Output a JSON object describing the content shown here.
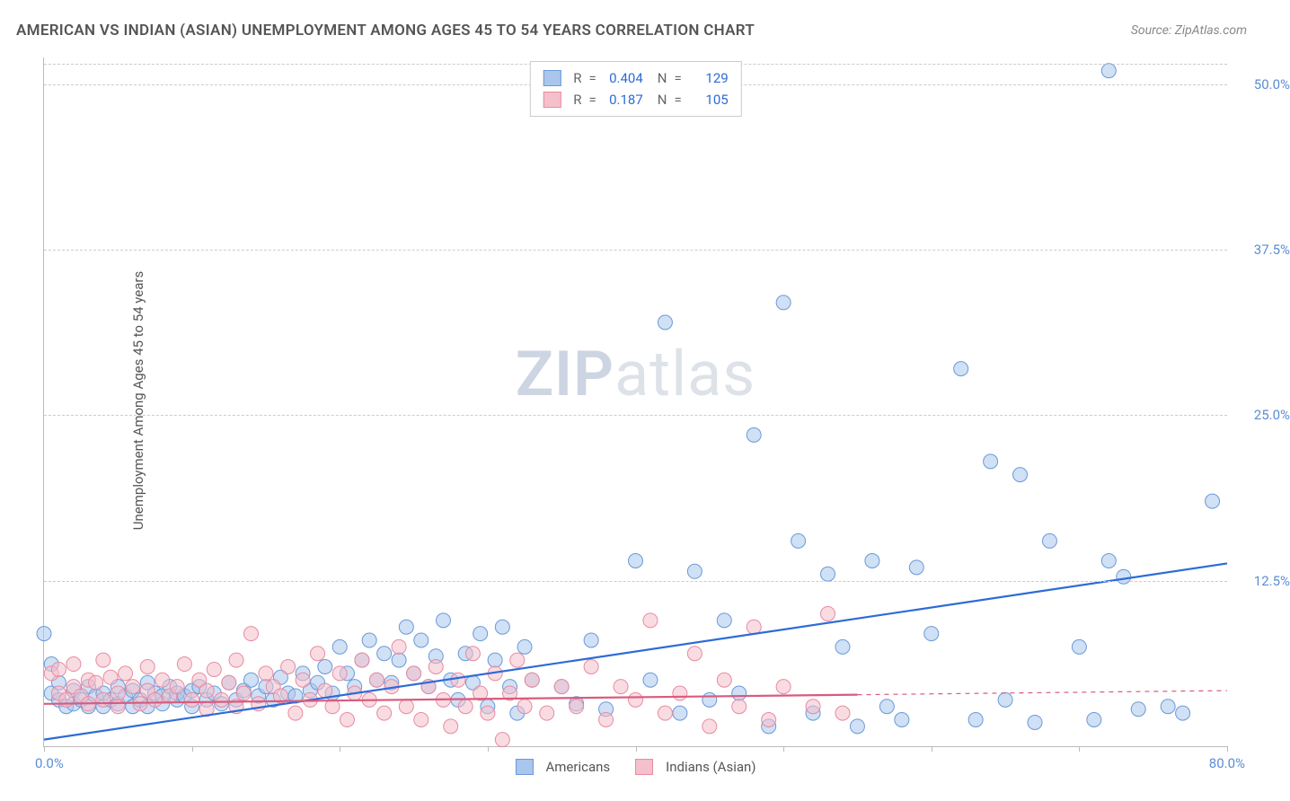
{
  "title": "AMERICAN VS INDIAN (ASIAN) UNEMPLOYMENT AMONG AGES 45 TO 54 YEARS CORRELATION CHART",
  "source": "Source: ZipAtlas.com",
  "y_axis_label": "Unemployment Among Ages 45 to 54 years",
  "watermark_bold": "ZIP",
  "watermark_rest": "atlas",
  "chart": {
    "type": "scatter",
    "background_color": "#ffffff",
    "grid_color": "#cccccc",
    "axis_color": "#bbbbbb",
    "tick_label_color": "#5b8dd6",
    "xlim": [
      0,
      80
    ],
    "ylim": [
      0,
      52
    ],
    "x_ticks": [
      0,
      10,
      20,
      30,
      40,
      50,
      60,
      70,
      80
    ],
    "x_tick_labels_shown": {
      "0": "0.0%",
      "80": "80.0%"
    },
    "y_ticks": [
      12.5,
      25.0,
      37.5,
      50.0
    ],
    "y_tick_labels": [
      "12.5%",
      "25.0%",
      "37.5%",
      "50.0%"
    ],
    "marker_radius": 8,
    "marker_opacity": 0.55,
    "line_width": 2.2,
    "series": [
      {
        "name": "Americans",
        "color_fill": "#a9c6ec",
        "color_stroke": "#6a9ad8",
        "line_color": "#2e6bd6",
        "r_value": "0.404",
        "n_value": "129",
        "regression": {
          "x1": 0,
          "y1": 0.5,
          "x2": 80,
          "y2": 13.8,
          "dashed_from_x": null
        },
        "points": [
          [
            0,
            8.5
          ],
          [
            0.5,
            6.2
          ],
          [
            0.5,
            4.0
          ],
          [
            1,
            3.5
          ],
          [
            1,
            4.8
          ],
          [
            1.5,
            3.0
          ],
          [
            2,
            3.2
          ],
          [
            2,
            4.2
          ],
          [
            2.5,
            3.5
          ],
          [
            3,
            3.0
          ],
          [
            3,
            4.5
          ],
          [
            3.5,
            3.8
          ],
          [
            4,
            3.0
          ],
          [
            4,
            4.0
          ],
          [
            4.5,
            3.5
          ],
          [
            5,
            3.2
          ],
          [
            5,
            4.5
          ],
          [
            5.5,
            3.8
          ],
          [
            6,
            3.0
          ],
          [
            6,
            4.2
          ],
          [
            6.5,
            3.5
          ],
          [
            7,
            3.0
          ],
          [
            7,
            4.8
          ],
          [
            7.5,
            4.0
          ],
          [
            8,
            3.2
          ],
          [
            8,
            3.8
          ],
          [
            8.5,
            4.5
          ],
          [
            9,
            3.5
          ],
          [
            9,
            4.0
          ],
          [
            9.5,
            3.8
          ],
          [
            10,
            4.2
          ],
          [
            10,
            3.0
          ],
          [
            10.5,
            4.5
          ],
          [
            11,
            3.5
          ],
          [
            11.5,
            4.0
          ],
          [
            12,
            3.2
          ],
          [
            12.5,
            4.8
          ],
          [
            13,
            3.5
          ],
          [
            13.5,
            4.2
          ],
          [
            14,
            5.0
          ],
          [
            14.5,
            3.8
          ],
          [
            15,
            4.5
          ],
          [
            15.5,
            3.5
          ],
          [
            16,
            5.2
          ],
          [
            16.5,
            4.0
          ],
          [
            17,
            3.8
          ],
          [
            17.5,
            5.5
          ],
          [
            18,
            4.2
          ],
          [
            18.5,
            4.8
          ],
          [
            19,
            6.0
          ],
          [
            19.5,
            4.0
          ],
          [
            20,
            7.5
          ],
          [
            20.5,
            5.5
          ],
          [
            21,
            4.5
          ],
          [
            21.5,
            6.5
          ],
          [
            22,
            8.0
          ],
          [
            22.5,
            5.0
          ],
          [
            23,
            7.0
          ],
          [
            23.5,
            4.8
          ],
          [
            24,
            6.5
          ],
          [
            24.5,
            9.0
          ],
          [
            25,
            5.5
          ],
          [
            25.5,
            8.0
          ],
          [
            26,
            4.5
          ],
          [
            26.5,
            6.8
          ],
          [
            27,
            9.5
          ],
          [
            27.5,
            5.0
          ],
          [
            28,
            3.5
          ],
          [
            28.5,
            7.0
          ],
          [
            29,
            4.8
          ],
          [
            29.5,
            8.5
          ],
          [
            30,
            3.0
          ],
          [
            30.5,
            6.5
          ],
          [
            31,
            9.0
          ],
          [
            31.5,
            4.5
          ],
          [
            32,
            2.5
          ],
          [
            32.5,
            7.5
          ],
          [
            33,
            5.0
          ],
          [
            35,
            4.5
          ],
          [
            36,
            3.2
          ],
          [
            37,
            8.0
          ],
          [
            38,
            2.8
          ],
          [
            40,
            14.0
          ],
          [
            41,
            5.0
          ],
          [
            42,
            32.0
          ],
          [
            43,
            2.5
          ],
          [
            44,
            13.2
          ],
          [
            45,
            3.5
          ],
          [
            46,
            9.5
          ],
          [
            47,
            4.0
          ],
          [
            48,
            23.5
          ],
          [
            49,
            1.5
          ],
          [
            50,
            33.5
          ],
          [
            51,
            15.5
          ],
          [
            52,
            2.5
          ],
          [
            53,
            13.0
          ],
          [
            54,
            7.5
          ],
          [
            55,
            1.5
          ],
          [
            56,
            14.0
          ],
          [
            57,
            3.0
          ],
          [
            58,
            2.0
          ],
          [
            59,
            13.5
          ],
          [
            60,
            8.5
          ],
          [
            62,
            28.5
          ],
          [
            63,
            2.0
          ],
          [
            64,
            21.5
          ],
          [
            65,
            3.5
          ],
          [
            66,
            20.5
          ],
          [
            67,
            1.8
          ],
          [
            68,
            15.5
          ],
          [
            70,
            7.5
          ],
          [
            71,
            2.0
          ],
          [
            72,
            51.0
          ],
          [
            73,
            12.8
          ],
          [
            74,
            2.8
          ],
          [
            76,
            3.0
          ],
          [
            77,
            2.5
          ],
          [
            79,
            18.5
          ],
          [
            72,
            14.0
          ]
        ]
      },
      {
        "name": "Indians (Asian)",
        "color_fill": "#f4c0cb",
        "color_stroke": "#e88ba1",
        "line_color": "#d95b7e",
        "r_value": "0.187",
        "n_value": "105",
        "regression": {
          "x1": 0,
          "y1": 3.2,
          "x2": 80,
          "y2": 4.2,
          "dashed_from_x": 55
        },
        "points": [
          [
            0.5,
            5.5
          ],
          [
            1,
            4.0
          ],
          [
            1,
            5.8
          ],
          [
            1.5,
            3.5
          ],
          [
            2,
            4.5
          ],
          [
            2,
            6.2
          ],
          [
            2.5,
            3.8
          ],
          [
            3,
            5.0
          ],
          [
            3,
            3.2
          ],
          [
            3.5,
            4.8
          ],
          [
            4,
            6.5
          ],
          [
            4,
            3.5
          ],
          [
            4.5,
            5.2
          ],
          [
            5,
            4.0
          ],
          [
            5,
            3.0
          ],
          [
            5.5,
            5.5
          ],
          [
            6,
            4.5
          ],
          [
            6.5,
            3.2
          ],
          [
            7,
            6.0
          ],
          [
            7,
            4.2
          ],
          [
            7.5,
            3.5
          ],
          [
            8,
            5.0
          ],
          [
            8.5,
            3.8
          ],
          [
            9,
            4.5
          ],
          [
            9.5,
            6.2
          ],
          [
            10,
            3.5
          ],
          [
            10.5,
            5.0
          ],
          [
            11,
            4.2
          ],
          [
            11,
            2.8
          ],
          [
            11.5,
            5.8
          ],
          [
            12,
            3.5
          ],
          [
            12.5,
            4.8
          ],
          [
            13,
            3.0
          ],
          [
            13,
            6.5
          ],
          [
            13.5,
            4.0
          ],
          [
            14,
            8.5
          ],
          [
            14.5,
            3.2
          ],
          [
            15,
            5.5
          ],
          [
            15.5,
            4.5
          ],
          [
            16,
            3.8
          ],
          [
            16.5,
            6.0
          ],
          [
            17,
            2.5
          ],
          [
            17.5,
            5.0
          ],
          [
            18,
            3.5
          ],
          [
            18.5,
            7.0
          ],
          [
            19,
            4.2
          ],
          [
            19.5,
            3.0
          ],
          [
            20,
            5.5
          ],
          [
            20.5,
            2.0
          ],
          [
            21,
            4.0
          ],
          [
            21.5,
            6.5
          ],
          [
            22,
            3.5
          ],
          [
            22.5,
            5.0
          ],
          [
            23,
            2.5
          ],
          [
            23.5,
            4.5
          ],
          [
            24,
            7.5
          ],
          [
            24.5,
            3.0
          ],
          [
            25,
            5.5
          ],
          [
            25.5,
            2.0
          ],
          [
            26,
            4.5
          ],
          [
            26.5,
            6.0
          ],
          [
            27,
            3.5
          ],
          [
            27.5,
            1.5
          ],
          [
            28,
            5.0
          ],
          [
            28.5,
            3.0
          ],
          [
            29,
            7.0
          ],
          [
            29.5,
            4.0
          ],
          [
            30,
            2.5
          ],
          [
            30.5,
            5.5
          ],
          [
            31,
            0.5
          ],
          [
            31.5,
            4.0
          ],
          [
            32,
            6.5
          ],
          [
            32.5,
            3.0
          ],
          [
            33,
            5.0
          ],
          [
            34,
            2.5
          ],
          [
            35,
            4.5
          ],
          [
            36,
            3.0
          ],
          [
            37,
            6.0
          ],
          [
            38,
            2.0
          ],
          [
            39,
            4.5
          ],
          [
            40,
            3.5
          ],
          [
            41,
            9.5
          ],
          [
            42,
            2.5
          ],
          [
            43,
            4.0
          ],
          [
            44,
            7.0
          ],
          [
            45,
            1.5
          ],
          [
            46,
            5.0
          ],
          [
            47,
            3.0
          ],
          [
            48,
            9.0
          ],
          [
            49,
            2.0
          ],
          [
            50,
            4.5
          ],
          [
            52,
            3.0
          ],
          [
            53,
            10.0
          ],
          [
            54,
            2.5
          ]
        ]
      }
    ]
  },
  "legend_bottom": [
    {
      "label": "Americans",
      "fill": "#a9c6ec",
      "stroke": "#6a9ad8"
    },
    {
      "label": "Indians (Asian)",
      "fill": "#f4c0cb",
      "stroke": "#e88ba1"
    }
  ]
}
